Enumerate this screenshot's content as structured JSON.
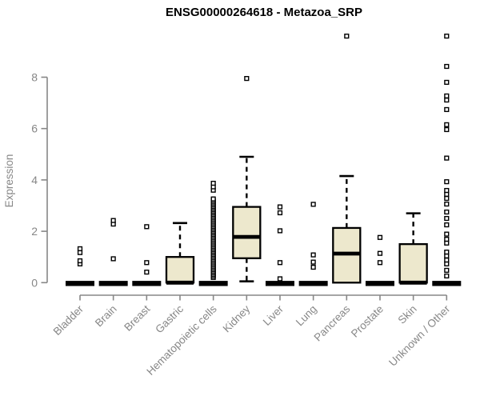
{
  "colors": {
    "box_fill": "#EDE8CD",
    "box_stroke": "#000000",
    "axis_gray": "#878787",
    "title_color": "#000000",
    "outlier_fill": "#ffffff"
  },
  "chart_data": {
    "type": "boxplot",
    "title": "ENSG00000264618 - Metazoa_SRP",
    "xlabel": "",
    "ylabel": "Expression",
    "ylim": [
      0,
      9.8
    ],
    "yticks": [
      0,
      2,
      4,
      6,
      8
    ],
    "grid": false,
    "legend": "none",
    "categories": [
      "Bladder",
      "Brain",
      "Breast",
      "Gastric",
      "Hematopoietic cells",
      "Kidney",
      "Liver",
      "Lung",
      "Pancreas",
      "Prostate",
      "Skin",
      "Unknown / Other"
    ],
    "boxes": [
      {
        "category": "Bladder",
        "collapsed": true,
        "q1": 0,
        "median": 0,
        "q3": 0,
        "whisker_low": 0,
        "whisker_high": 0,
        "outliers": [
          0.73,
          0.85,
          1.17,
          1.32
        ]
      },
      {
        "category": "Brain",
        "collapsed": true,
        "q1": 0,
        "median": 0,
        "q3": 0,
        "whisker_low": 0,
        "whisker_high": 0,
        "outliers": [
          0.93,
          2.28,
          2.42
        ]
      },
      {
        "category": "Breast",
        "collapsed": true,
        "q1": 0,
        "median": 0,
        "q3": 0,
        "whisker_low": 0,
        "whisker_high": 0,
        "outliers": [
          0.41,
          0.78,
          2.18
        ]
      },
      {
        "category": "Gastric",
        "collapsed": false,
        "q1": 0,
        "median": 0,
        "q3": 1.0,
        "whisker_low": 0,
        "whisker_high": 2.32,
        "outliers": []
      },
      {
        "category": "Hematopoietic cells",
        "collapsed": true,
        "q1": 0,
        "median": 0,
        "q3": 0,
        "whisker_low": 0,
        "whisker_high": 0,
        "outliers": [
          0.2,
          0.26,
          0.32,
          0.38,
          0.44,
          0.5,
          0.56,
          0.62,
          0.68,
          0.74,
          0.8,
          0.86,
          0.92,
          0.98,
          1.04,
          1.1,
          1.16,
          1.22,
          1.28,
          1.34,
          1.4,
          1.46,
          1.52,
          1.58,
          1.64,
          1.7,
          1.76,
          1.82,
          1.88,
          1.94,
          2.0,
          2.06,
          2.12,
          2.18,
          2.24,
          2.3,
          2.36,
          2.42,
          2.48,
          2.54,
          2.6,
          2.66,
          2.72,
          2.78,
          2.84,
          2.9,
          2.96,
          3.02,
          3.08,
          3.14,
          3.2,
          3.26,
          3.6,
          3.73,
          3.87
        ]
      },
      {
        "category": "Kidney",
        "collapsed": false,
        "q1": 0.95,
        "median": 1.78,
        "q3": 2.95,
        "whisker_low": 0.05,
        "whisker_high": 4.9,
        "outliers": [
          7.95
        ]
      },
      {
        "category": "Liver",
        "collapsed": true,
        "q1": 0,
        "median": 0,
        "q3": 0,
        "whisker_low": 0,
        "whisker_high": 0,
        "outliers": [
          0.15,
          0.78,
          2.02,
          2.72,
          2.95
        ]
      },
      {
        "category": "Lung",
        "collapsed": true,
        "q1": 0,
        "median": 0,
        "q3": 0,
        "whisker_low": 0,
        "whisker_high": 0,
        "outliers": [
          0.6,
          0.8,
          1.08,
          3.05
        ]
      },
      {
        "category": "Pancreas",
        "collapsed": false,
        "q1": 0,
        "median": 1.13,
        "q3": 2.13,
        "whisker_low": 0,
        "whisker_high": 4.15,
        "outliers": [
          9.6
        ]
      },
      {
        "category": "Prostate",
        "collapsed": true,
        "q1": 0,
        "median": 0,
        "q3": 0,
        "whisker_low": 0,
        "whisker_high": 0,
        "outliers": [
          0.78,
          1.14,
          1.76
        ]
      },
      {
        "category": "Skin",
        "collapsed": false,
        "q1": 0,
        "median": 0,
        "q3": 1.5,
        "whisker_low": 0,
        "whisker_high": 2.7,
        "outliers": []
      },
      {
        "category": "Unknown / Other",
        "collapsed": true,
        "q1": 0,
        "median": 0,
        "q3": 0,
        "whisker_low": 0,
        "whisker_high": 0,
        "outliers": [
          0.26,
          0.48,
          0.73,
          0.88,
          1.04,
          1.19,
          1.54,
          1.69,
          1.89,
          2.25,
          2.5,
          2.75,
          3.06,
          3.28,
          3.44,
          3.59,
          3.93,
          4.85,
          5.96,
          6.15,
          6.74,
          7.11,
          7.27,
          7.8,
          8.42,
          9.6
        ]
      }
    ]
  }
}
